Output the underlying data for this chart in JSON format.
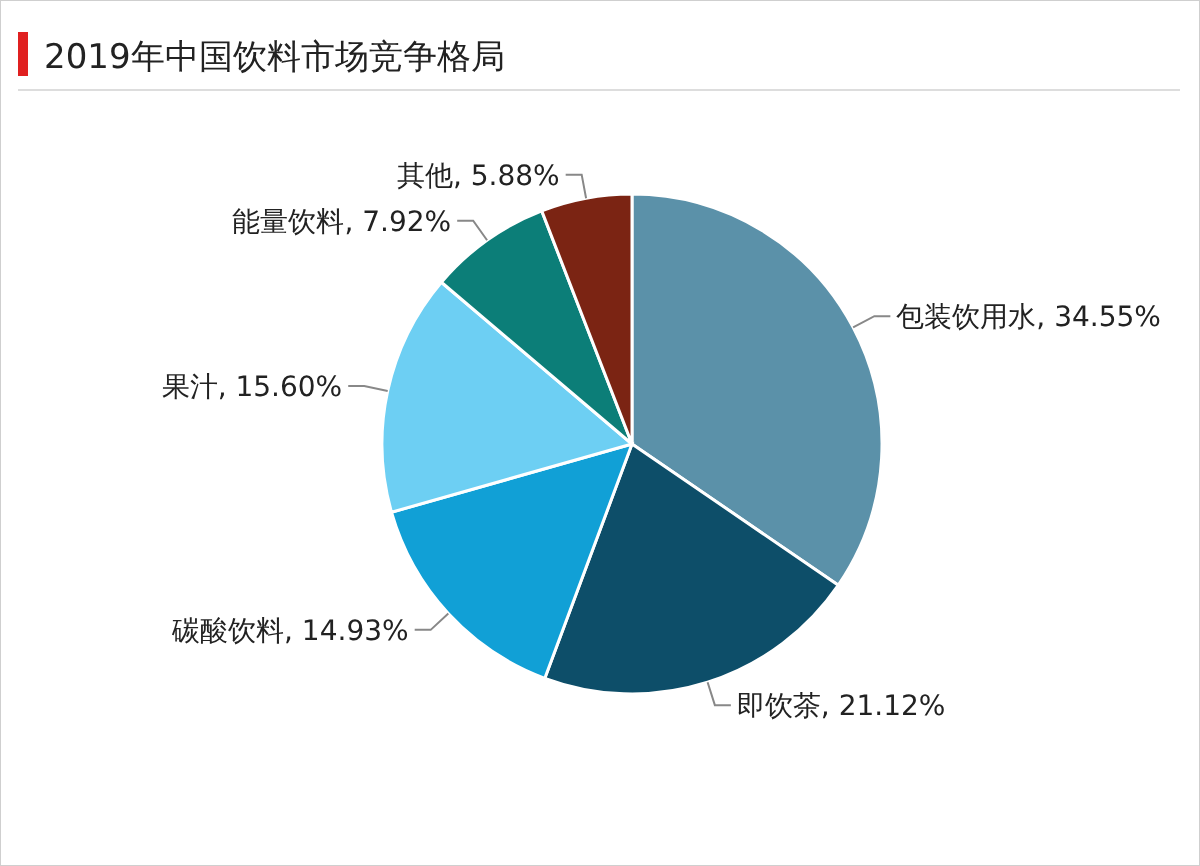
{
  "chart_data": {
    "type": "pie",
    "title": "2019年中国饮料市场竞争格局",
    "categories": [
      "包装饮用水",
      "即饮茶",
      "碳酸饮料",
      "果汁",
      "能量饮料",
      "其他"
    ],
    "values": [
      34.55,
      21.12,
      14.93,
      15.6,
      7.92,
      5.88
    ],
    "value_labels": [
      "34.55%",
      "21.12%",
      "14.93%",
      "15.60%",
      "7.92%",
      "5.88%"
    ],
    "colors": [
      "#5b91a9",
      "#0d4e69",
      "#11a0d6",
      "#6dcff3",
      "#0c7e78",
      "#7b2413"
    ]
  }
}
